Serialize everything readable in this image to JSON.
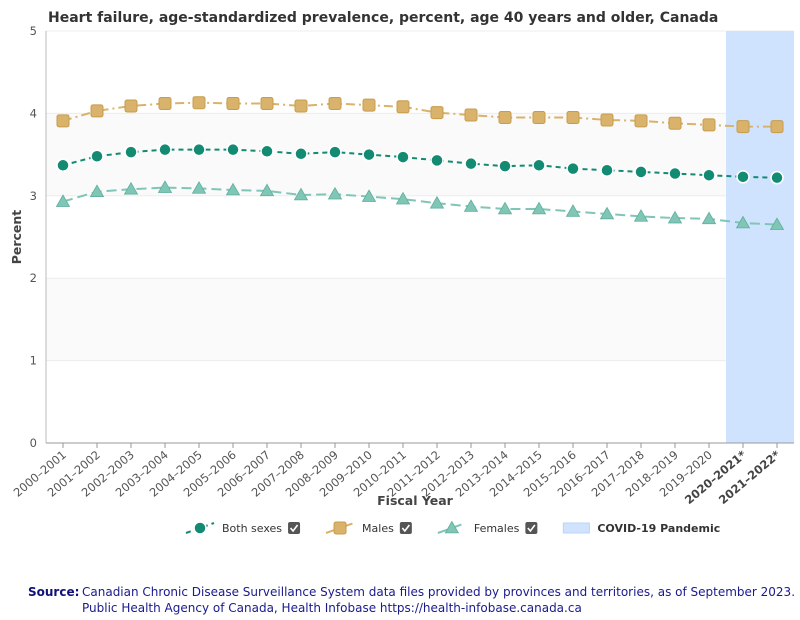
{
  "chart_data": {
    "type": "line",
    "title": "Heart failure, age-standardized prevalence, percent, age 40 years and older, Canada",
    "xlabel": "Fiscal Year",
    "ylabel": "Percent",
    "ylim": [
      0,
      5
    ],
    "yticks": [
      "0",
      "1",
      "2",
      "3",
      "4",
      "5"
    ],
    "grid": true,
    "categories": [
      "2000–2001",
      "2001–2002",
      "2002–2003",
      "2003–2004",
      "2004–2005",
      "2005–2006",
      "2006–2007",
      "2007–2008",
      "2008–2009",
      "2009–2010",
      "2010–2011",
      "2011–2012",
      "2012–2013",
      "2013–2014",
      "2014–2015",
      "2015–2016",
      "2016–2017",
      "2017–2018",
      "2018–2019",
      "2019–2020",
      "2020–2021*",
      "2021–2022*"
    ],
    "bold_categories": [
      "2020–2021*",
      "2021–2022*"
    ],
    "series": [
      {
        "name": "Both sexes",
        "color": "#138a72",
        "marker": "circle",
        "dash": "dash",
        "values": [
          3.37,
          3.48,
          3.53,
          3.56,
          3.56,
          3.56,
          3.54,
          3.51,
          3.53,
          3.5,
          3.47,
          3.43,
          3.39,
          3.36,
          3.37,
          3.33,
          3.31,
          3.29,
          3.27,
          3.25,
          3.23,
          3.22
        ]
      },
      {
        "name": "Males",
        "color": "#d9b36b",
        "marker": "square",
        "dash": "dashdot",
        "values": [
          3.91,
          4.03,
          4.09,
          4.12,
          4.13,
          4.12,
          4.12,
          4.09,
          4.12,
          4.1,
          4.08,
          4.01,
          3.98,
          3.95,
          3.95,
          3.95,
          3.92,
          3.91,
          3.88,
          3.86,
          3.84,
          3.84
        ]
      },
      {
        "name": "Females",
        "color": "#7fc6b6",
        "marker": "triangle",
        "dash": "longdash",
        "values": [
          2.93,
          3.05,
          3.08,
          3.1,
          3.09,
          3.07,
          3.06,
          3.01,
          3.02,
          2.99,
          2.96,
          2.91,
          2.87,
          2.84,
          2.84,
          2.81,
          2.78,
          2.75,
          2.73,
          2.72,
          2.67,
          2.65
        ]
      }
    ],
    "highlight": {
      "label": "COVID-19 Pandemic",
      "from": "2020–2021*",
      "to": "2021–2022*",
      "color": "#cfe3ff"
    },
    "legend": "bottom"
  },
  "source": {
    "label": "Source:",
    "line1": "Canadian Chronic Disease Surveillance System data files provided by provinces and territories, as of September 2023.",
    "line2": "Public Health Agency of Canada, Health Infobase https://health-infobase.canada.ca"
  }
}
